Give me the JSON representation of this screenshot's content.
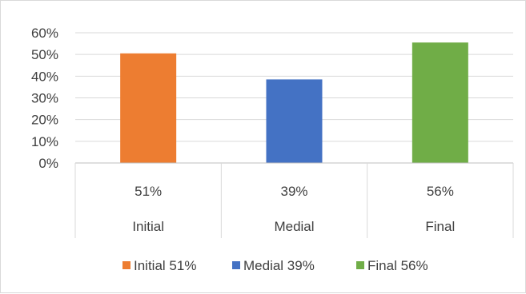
{
  "chart_data": {
    "type": "bar",
    "title": "",
    "xlabel": "",
    "ylabel": "",
    "ylim": [
      0,
      0.6
    ],
    "yticks": [
      0,
      0.1,
      0.2,
      0.3,
      0.4,
      0.5,
      0.6
    ],
    "ytick_labels": [
      "0%",
      "10%",
      "20%",
      "30%",
      "40%",
      "50%",
      "60%"
    ],
    "grid": true,
    "legend_position": "bottom",
    "data_table": true,
    "categories": [
      "Initial",
      "Medial",
      "Final"
    ],
    "series": [
      {
        "name": "Initial 51%",
        "category": "Initial",
        "value": 0.505,
        "table_label": "51%",
        "color": "#ED7D31"
      },
      {
        "name": "Medial 39%",
        "category": "Medial",
        "value": 0.385,
        "table_label": "39%",
        "color": "#4472C4"
      },
      {
        "name": "Final 56%",
        "category": "Final",
        "value": 0.555,
        "table_label": "56%",
        "color": "#70AD47"
      }
    ]
  }
}
